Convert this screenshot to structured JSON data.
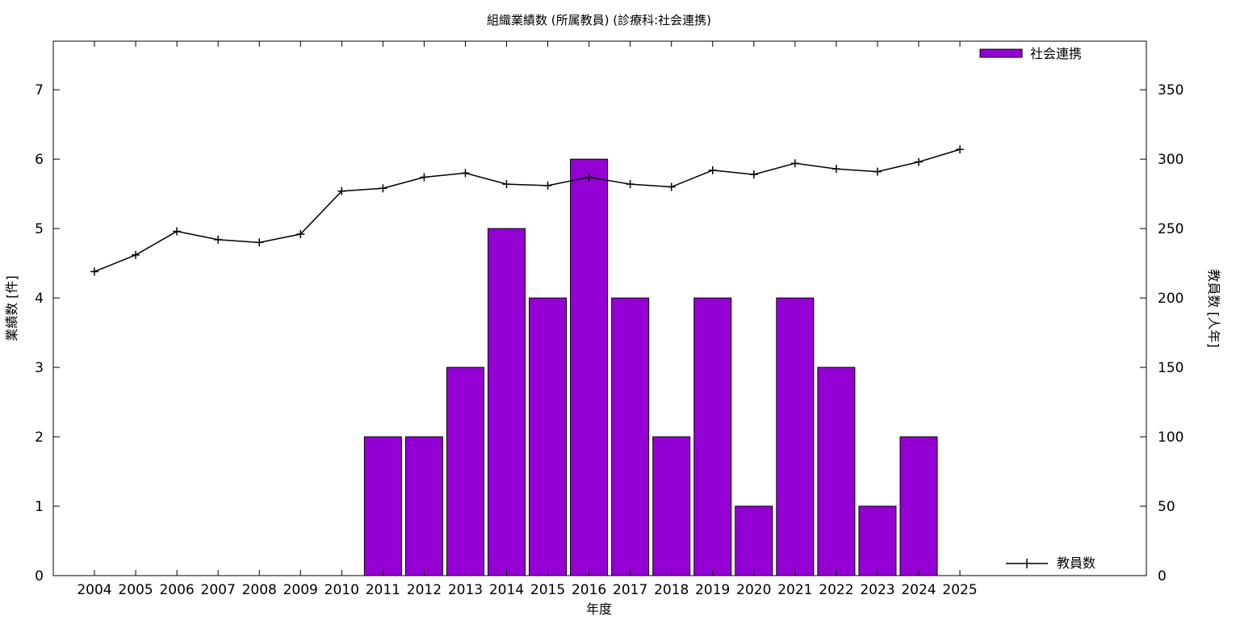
{
  "chart_data": {
    "type": "bar",
    "title": "組織業績数 (所属教員) (診療科:社会連携)",
    "xlabel": "年度",
    "ylabel": "業績数 [件]",
    "y2label": "教員数 [人年]",
    "categories": [
      "2004",
      "2005",
      "2006",
      "2007",
      "2008",
      "2009",
      "2010",
      "2011",
      "2012",
      "2013",
      "2014",
      "2015",
      "2016",
      "2017",
      "2018",
      "2019",
      "2020",
      "2021",
      "2022",
      "2023",
      "2024",
      "2025"
    ],
    "ylim": [
      0,
      7.7
    ],
    "y2lim": [
      0,
      385
    ],
    "yticks": [
      "0",
      "1",
      "2",
      "3",
      "4",
      "5",
      "6",
      "7"
    ],
    "y2ticks": [
      "0",
      "50",
      "100",
      "150",
      "200",
      "250",
      "300",
      "350"
    ],
    "series": [
      {
        "name": "社会連携",
        "kind": "bar",
        "axis": "left",
        "color": "#9400D3",
        "values": [
          0,
          0,
          0,
          0,
          0,
          0,
          0,
          2,
          2,
          3,
          5,
          4,
          6,
          4,
          2,
          4,
          1,
          4,
          3,
          1,
          2,
          0
        ]
      },
      {
        "name": "教員数",
        "kind": "line",
        "axis": "right",
        "color": "#000000",
        "values": [
          219,
          231,
          248,
          242,
          240,
          246,
          277,
          279,
          287,
          290,
          282,
          281,
          287,
          282,
          280,
          292,
          289,
          297,
          293,
          291,
          298,
          307
        ]
      }
    ],
    "legend": {
      "bars": "top-right",
      "line": "bottom-right"
    },
    "grid": false
  }
}
